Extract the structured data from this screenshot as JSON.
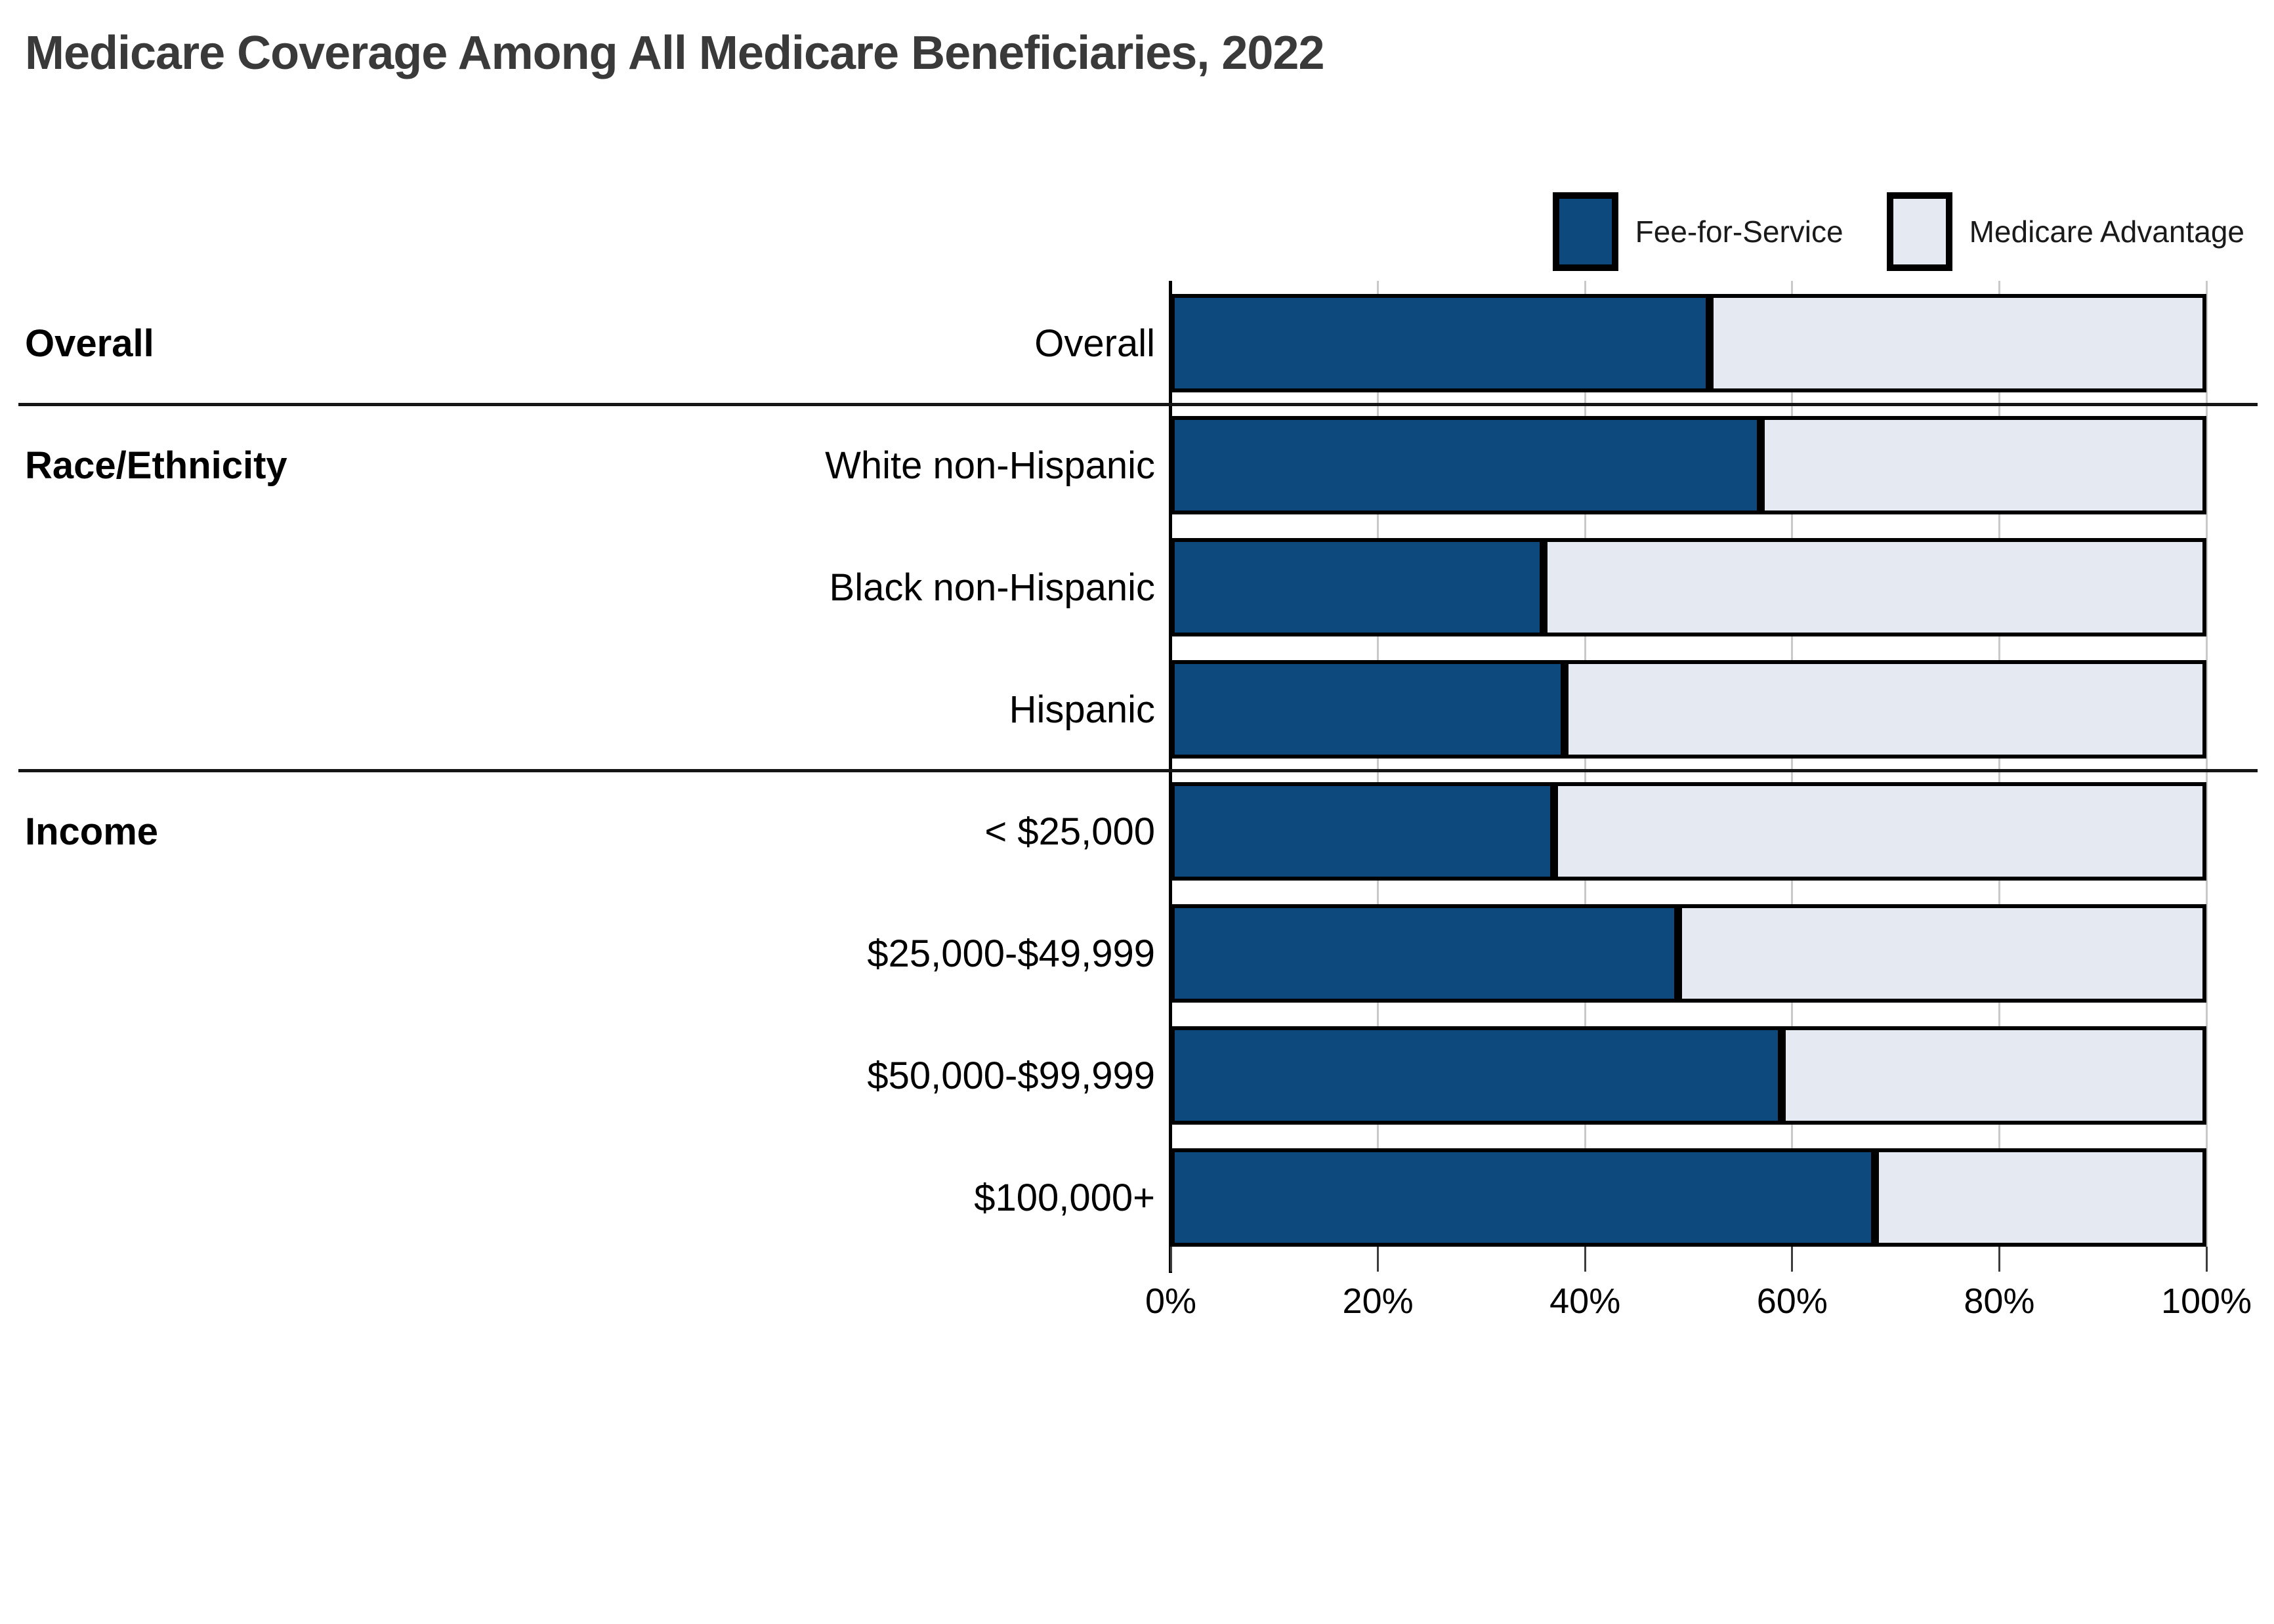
{
  "title": "Medicare Coverage Among All Medicare Beneficiaries, 2022",
  "legend": [
    {
      "label": "Fee-for-Service",
      "color": "#0D497D"
    },
    {
      "label": "Medicare Advantage",
      "color": "#E5E9F2"
    }
  ],
  "colors": {
    "fee_for_service": "#0D497D",
    "medicare_advantage": "#E5E9F2",
    "bar_border": "#000000",
    "gridline": "#C9C9C9",
    "divider": "#151515",
    "title_text": "#3A3A3A",
    "label_text": "#000000"
  },
  "chart_data": {
    "type": "bar",
    "stacked": true,
    "orientation": "horizontal",
    "title": "Medicare Coverage Among All Medicare Beneficiaries, 2022",
    "unit": "%",
    "categories": [
      "Overall",
      "White non-Hispanic",
      "Black non-Hispanic",
      "Hispanic",
      "< $25,000",
      "$25,000-$49,999",
      "$50,000-$99,999",
      "$100,000+"
    ],
    "groups": [
      {
        "label": "Overall",
        "rows": [
          0
        ]
      },
      {
        "label": "Race/Ethnicity",
        "rows": [
          1,
          2,
          3
        ]
      },
      {
        "label": "Income",
        "rows": [
          4,
          5,
          6,
          7
        ]
      }
    ],
    "series": [
      {
        "name": "Fee-for-Service",
        "color": "#0D497D",
        "values": [
          52,
          57,
          36,
          38,
          37,
          49,
          59,
          68
        ]
      },
      {
        "name": "Medicare Advantage",
        "color": "#E5E9F2",
        "values": [
          48,
          43,
          64,
          62,
          63,
          51,
          41,
          32
        ]
      }
    ],
    "x_axis": {
      "min": 0,
      "max": 100,
      "tick_values": [
        0,
        20,
        40,
        60,
        80,
        100
      ],
      "tick_labels": [
        "0%",
        "20%",
        "40%",
        "60%",
        "80%",
        "100%"
      ]
    },
    "legend_position": "top-right",
    "grid": true
  }
}
